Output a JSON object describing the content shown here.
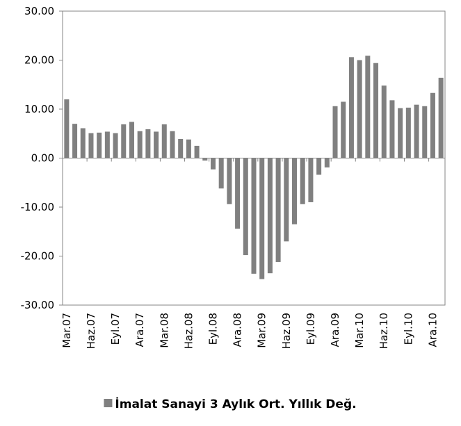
{
  "chart_data": {
    "type": "bar",
    "categories": [
      "Mar.07",
      null,
      null,
      "Haz.07",
      null,
      null,
      "Eyl.07",
      null,
      null,
      "Ara.07",
      null,
      null,
      "Mar.08",
      null,
      null,
      "Haz.08",
      null,
      null,
      "Eyl.08",
      null,
      null,
      "Ara.08",
      null,
      null,
      "Mar.09",
      null,
      null,
      "Haz.09",
      null,
      null,
      "Eyl.09",
      null,
      null,
      "Ara.09",
      null,
      null,
      "Mar.10",
      null,
      null,
      "Haz.10",
      null,
      null,
      "Eyl.10",
      null,
      null,
      "Ara.10",
      null
    ],
    "series": [
      {
        "name": "İmalat Sanayi 3 Aylık Ort. Yıllık Değ.",
        "color": "#808080",
        "values": [
          12.0,
          7.0,
          6.1,
          5.1,
          5.2,
          5.4,
          5.1,
          6.9,
          7.4,
          5.5,
          5.9,
          5.4,
          6.9,
          5.5,
          3.9,
          3.8,
          2.5,
          -0.5,
          -2.3,
          -6.2,
          -9.4,
          -14.4,
          -19.8,
          -23.6,
          -24.7,
          -23.5,
          -21.2,
          -17.0,
          -13.5,
          -9.4,
          -9.0,
          -3.4,
          -1.9,
          10.6,
          11.5,
          20.6,
          20.0,
          20.9,
          19.4,
          14.8,
          11.8,
          10.2,
          10.3,
          10.9,
          10.6,
          13.3,
          16.4
        ]
      }
    ],
    "ylim": [
      -30,
      30
    ],
    "yticks": [
      {
        "value": -30,
        "label": "-30.00"
      },
      {
        "value": -20,
        "label": "-20.00"
      },
      {
        "value": -10,
        "label": "-10.00"
      },
      {
        "value": 0,
        "label": "0.00"
      },
      {
        "value": 10,
        "label": "10.00"
      },
      {
        "value": 20,
        "label": "20.00"
      },
      {
        "value": 30,
        "label": "30.00"
      }
    ],
    "legend": "bottom"
  }
}
